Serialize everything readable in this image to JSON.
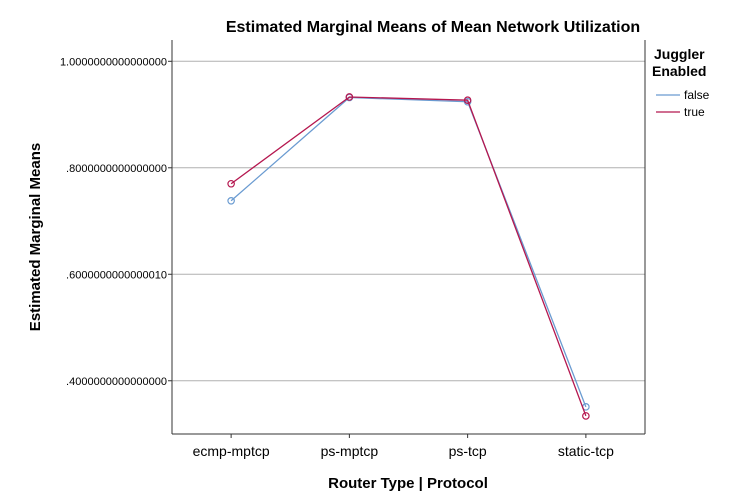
{
  "chart_data": {
    "type": "line",
    "title": "Estimated Marginal Means of Mean Network Utilization",
    "xlabel": "Router Type | Protocol",
    "ylabel": "Estimated Marginal Means",
    "categories": [
      "ecmp-mptcp",
      "ps-mptcp",
      "ps-tcp",
      "static-tcp"
    ],
    "ylim": [
      0.3,
      1.04
    ],
    "yticks": [
      {
        "value": 1.0,
        "label": "1.0000000000000000"
      },
      {
        "value": 0.8,
        "label": ".8000000000000000"
      },
      {
        "value": 0.6,
        "label": ".6000000000000010"
      },
      {
        "value": 0.4,
        "label": ".4000000000000000"
      }
    ],
    "grid": true,
    "legend": {
      "title_line1": "Juggler",
      "title_line2": "Enabled",
      "placement": "right"
    },
    "series": [
      {
        "name": "false",
        "color": "#6a9bd1",
        "values": [
          0.738,
          0.932,
          0.924,
          0.351
        ]
      },
      {
        "name": "true",
        "color": "#b5174f",
        "values": [
          0.77,
          0.933,
          0.927,
          0.334
        ]
      }
    ]
  }
}
